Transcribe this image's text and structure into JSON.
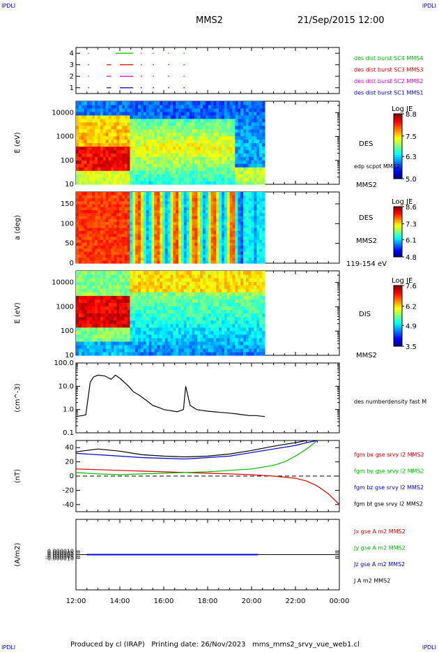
{
  "corner_labels": {
    "tl": "IPDLI",
    "tr": "IPDLI",
    "bl": "IPDLI",
    "br": "IPDLI"
  },
  "header": {
    "spacecraft": "MMS2",
    "datetime": "21/Sep/2015 12:00"
  },
  "footer": "Produced by cl (IRAP)   Printing date: 26/Nov/2023   mms_mms2_srvy_vue_web1.cl",
  "time_axis": {
    "ticks": [
      "12:00",
      "14:00",
      "16:00",
      "18:00",
      "20:00",
      "22:00",
      "00:00"
    ],
    "range_hours": [
      12,
      24
    ]
  },
  "colors": {
    "red": "#dd0000",
    "green": "#00bb00",
    "blue": "#0000cc",
    "black": "#000000",
    "magenta": "#dd00dd"
  },
  "chart_data": [
    {
      "type": "line",
      "id": "burst",
      "ylim": [
        0.5,
        4.5
      ],
      "yticks": [
        "1",
        "2",
        "3",
        "4"
      ],
      "series": [
        {
          "name": "des dist burst SC1 MMS1",
          "color": "#0000cc",
          "y": 1,
          "segments": [
            [
              12.55,
              12.56
            ],
            [
              13.4,
              13.6
            ],
            [
              14.0,
              14.6
            ],
            [
              14.95,
              15.0
            ],
            [
              15.5,
              15.55
            ],
            [
              16.2,
              16.25
            ],
            [
              16.9,
              16.95
            ]
          ]
        },
        {
          "name": "des dist burst SC2 MMS2",
          "color": "#dd00dd",
          "y": 2,
          "segments": [
            [
              12.55,
              12.56
            ],
            [
              13.4,
              13.6
            ],
            [
              14.0,
              14.6
            ],
            [
              14.95,
              15.0
            ],
            [
              15.5,
              15.55
            ],
            [
              16.2,
              16.25
            ],
            [
              16.9,
              16.95
            ]
          ]
        },
        {
          "name": "des dist burst SC3 MMS3",
          "color": "#dd0000",
          "y": 3,
          "segments": [
            [
              12.55,
              12.56
            ],
            [
              13.4,
              13.6
            ],
            [
              14.0,
              14.6
            ],
            [
              14.95,
              15.0
            ],
            [
              15.5,
              15.55
            ],
            [
              16.2,
              16.25
            ],
            [
              16.9,
              16.95
            ]
          ]
        },
        {
          "name": "des dist burst SC4 MMS4",
          "color": "#00bb00",
          "y": 4,
          "segments": [
            [
              12.55,
              12.56
            ],
            [
              13.8,
              14.6
            ],
            [
              14.95,
              15.0
            ],
            [
              15.5,
              15.55
            ],
            [
              16.2,
              16.25
            ],
            [
              16.9,
              16.95
            ]
          ]
        }
      ]
    },
    {
      "type": "heatmap",
      "id": "des-energy",
      "ylabel": "E (eV)",
      "log_y": true,
      "ylim": [
        10,
        30000
      ],
      "yticks": [
        "10",
        "100",
        "1000",
        "10000"
      ],
      "data_end_hour": 20.6,
      "colorbar": {
        "title": "Log JE",
        "ticks": [
          "8.8",
          "7.5",
          "6.3",
          "5.0"
        ],
        "min": 5.0,
        "max": 8.8
      },
      "right_labels": [
        "DES",
        "edp scpot MMS2",
        "MMS2"
      ]
    },
    {
      "type": "heatmap",
      "id": "des-pitch",
      "ylabel": "a (deg)",
      "ylim": [
        0,
        180
      ],
      "yticks": [
        "0",
        "50",
        "100",
        "150"
      ],
      "data_end_hour": 20.6,
      "colorbar": {
        "title": "Log JE",
        "ticks": [
          "8.6",
          "7.3",
          "6.1",
          "4.8"
        ],
        "min": 4.8,
        "max": 8.6
      },
      "right_labels": [
        "DES",
        "MMS2",
        "119-154 eV"
      ]
    },
    {
      "type": "heatmap",
      "id": "dis-energy",
      "ylabel": "E (eV)",
      "log_y": true,
      "ylim": [
        10,
        30000
      ],
      "yticks": [
        "10",
        "100",
        "1000",
        "10000"
      ],
      "data_end_hour": 20.6,
      "colorbar": {
        "title": "Log JE",
        "ticks": [
          "7.6",
          "6.2",
          "4.9",
          "3.5"
        ],
        "min": 3.5,
        "max": 7.6
      },
      "right_labels": [
        "DIS",
        "MMS2"
      ]
    },
    {
      "type": "line",
      "id": "density",
      "ylabel": "(cm^-3)",
      "log_y": true,
      "ylim": [
        0.1,
        100
      ],
      "yticks": [
        "0.1",
        "1.0",
        "10.0",
        "100.0"
      ],
      "series": [
        {
          "name": "des numberdensity fast M",
          "color": "#000000",
          "x": [
            12.0,
            12.3,
            12.45,
            12.55,
            12.65,
            12.8,
            13.0,
            13.3,
            13.6,
            13.8,
            14.0,
            14.2,
            14.4,
            14.6,
            14.9,
            15.2,
            15.5,
            15.8,
            16.0,
            16.3,
            16.6,
            16.9,
            17.0,
            17.2,
            17.5,
            17.8,
            18.0,
            18.3,
            18.6,
            19.0,
            19.3,
            19.6,
            19.9,
            20.2,
            20.6
          ],
          "y": [
            0.5,
            0.55,
            0.6,
            3,
            15,
            25,
            30,
            28,
            20,
            30,
            22,
            15,
            10,
            6,
            4,
            2.5,
            1.5,
            1.2,
            1.0,
            0.9,
            0.8,
            1.0,
            10,
            1.5,
            1.0,
            0.9,
            0.85,
            0.8,
            0.75,
            0.7,
            0.65,
            0.6,
            0.55,
            0.55,
            0.5
          ]
        }
      ]
    },
    {
      "type": "line",
      "id": "fgm",
      "ylabel": "(nT)",
      "ylim": [
        -50,
        50
      ],
      "yticks": [
        "-40",
        "-20",
        "0",
        "20",
        "40"
      ],
      "series": [
        {
          "name": "fgm bx gse srvy l2 MMS2",
          "color": "#dd0000",
          "x": [
            12.0,
            13.0,
            14.0,
            15.0,
            16.0,
            17.0,
            18.0,
            19.0,
            20.0,
            21.0,
            22.0,
            22.5,
            23.0,
            23.5,
            24.0
          ],
          "y": [
            10,
            9,
            8,
            7,
            6,
            5,
            4,
            3,
            2,
            0,
            -3,
            -7,
            -14,
            -25,
            -40
          ]
        },
        {
          "name": "fgm by gse srvy l2 MMS2",
          "color": "#00bb00",
          "x": [
            12.0,
            13.0,
            14.0,
            15.0,
            16.0,
            17.0,
            18.0,
            19.0,
            20.0,
            21.0,
            21.5,
            22.0,
            22.5,
            23.0
          ],
          "y": [
            5,
            3,
            2,
            3,
            4,
            5,
            6,
            8,
            10,
            15,
            20,
            28,
            38,
            50
          ]
        },
        {
          "name": "fgm bz gse srvy l2 MMS2",
          "color": "#0000cc",
          "x": [
            12.0,
            13.0,
            14.0,
            15.0,
            16.0,
            17.0,
            18.0,
            19.0,
            20.0,
            21.0,
            22.0,
            22.5,
            23.0
          ],
          "y": [
            32,
            30,
            28,
            26,
            25,
            24,
            26,
            28,
            33,
            38,
            43,
            47,
            50
          ]
        },
        {
          "name": "fgm bt gse srvy l2 MMS2",
          "color": "#000000",
          "x": [
            12.0,
            13.0,
            14.0,
            15.0,
            16.0,
            17.0,
            18.0,
            19.0,
            20.0,
            21.0,
            22.0,
            22.5
          ],
          "y": [
            34,
            38,
            35,
            30,
            28,
            27,
            28,
            31,
            36,
            42,
            47,
            50
          ]
        }
      ]
    },
    {
      "type": "line",
      "id": "current",
      "ylabel": "(A/m2)",
      "ylim": [
        -0.0001,
        0.0001
      ],
      "yticks": [
        "-0.000010",
        "-0.000005",
        "0.000000",
        "0.000005",
        "0.000010"
      ],
      "series": [
        {
          "name": "Jx gse A m2 MMS2",
          "color": "#dd0000"
        },
        {
          "name": "Jy gse A m2 MMS2",
          "color": "#00bb00"
        },
        {
          "name": "Jz gse A m2 MMS2",
          "color": "#0000cc"
        },
        {
          "name": "J A m2 MMS2",
          "color": "#000000"
        }
      ],
      "x": [
        12.5,
        20.3
      ],
      "y": [
        0,
        0
      ]
    }
  ]
}
